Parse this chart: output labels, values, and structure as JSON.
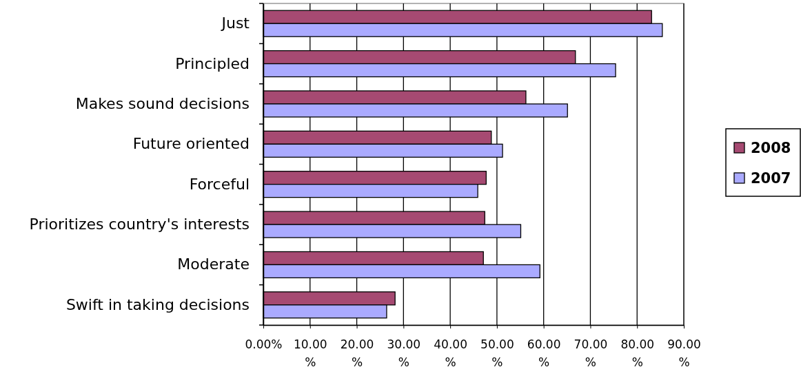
{
  "chart_data": {
    "type": "bar",
    "orientation": "horizontal",
    "categories": [
      "Just",
      "Principled",
      "Makes sound decisions",
      "Future oriented",
      "Forceful",
      "Prioritizes country's interests",
      "Moderate",
      "Swift in taking decisions"
    ],
    "series": [
      {
        "name": "2008",
        "color": "#a64a72",
        "values": [
          83.1,
          66.8,
          56.2,
          48.8,
          47.7,
          47.4,
          47.1,
          28.2
        ]
      },
      {
        "name": "2007",
        "color": "#aaaaff",
        "values": [
          85.4,
          75.4,
          65.1,
          51.2,
          45.9,
          55.1,
          59.2,
          26.4
        ]
      }
    ],
    "xlim": [
      0,
      90
    ],
    "xticks": [
      {
        "value": 0,
        "label": "0.00%"
      },
      {
        "value": 10,
        "label": "10.00 %"
      },
      {
        "value": 20,
        "label": "20.00 %"
      },
      {
        "value": 30,
        "label": "30.00 %"
      },
      {
        "value": 40,
        "label": "40.00 %"
      },
      {
        "value": 50,
        "label": "50.00 %"
      },
      {
        "value": 60,
        "label": "60.00 %"
      },
      {
        "value": 70,
        "label": "70.00 %"
      },
      {
        "value": 80,
        "label": "80.00 %"
      },
      {
        "value": 90,
        "label": "90.00 %"
      }
    ],
    "grid": "x",
    "legend": "right"
  }
}
